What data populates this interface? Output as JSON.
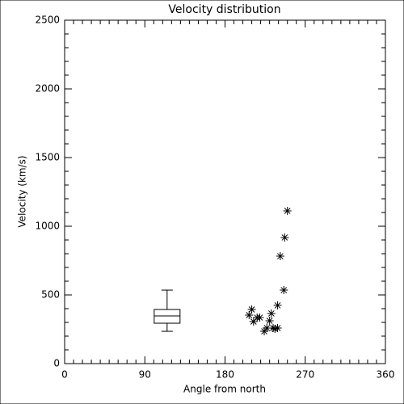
{
  "chart_data": {
    "type": "scatter",
    "title": "Velocity distribution",
    "x_label": "Angle from north",
    "y_label": "Velocity (km/s)",
    "xlim": [
      0,
      360
    ],
    "xticks": [
      0,
      90,
      180,
      270,
      360
    ],
    "xminor": [
      10,
      20,
      30,
      40,
      50,
      60,
      70,
      80,
      100,
      110,
      120,
      130,
      140,
      150,
      160,
      170,
      190,
      200,
      210,
      220,
      230,
      240,
      250,
      260,
      280,
      290,
      300,
      310,
      320,
      330,
      340,
      350
    ],
    "ylim": [
      0,
      2500
    ],
    "yticks": [
      0,
      500,
      1000,
      1500,
      2000,
      2500
    ],
    "yminor": [
      100,
      200,
      300,
      400,
      600,
      700,
      800,
      900,
      1100,
      1200,
      1300,
      1400,
      1600,
      1700,
      1800,
      1900,
      2100,
      2200,
      2300,
      2400
    ],
    "color": "#000000",
    "x": [
      207,
      210,
      212,
      216,
      219,
      224,
      227,
      230,
      232,
      234,
      236,
      239,
      239,
      242,
      246,
      247,
      250
    ],
    "values": [
      353,
      394,
      306,
      335,
      335,
      235,
      259,
      312,
      365,
      259,
      253,
      259,
      424,
      782,
      535,
      918,
      1112
    ],
    "box": {
      "x": 115,
      "min": 235,
      "q1": 294,
      "median": 347,
      "q3": 394,
      "max": 535
    }
  }
}
